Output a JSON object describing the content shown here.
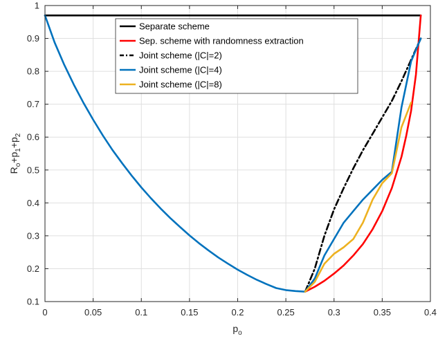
{
  "chart_data": {
    "type": "line",
    "xlabel_main": "p",
    "xlabel_sub": "o",
    "ylabel_parts": [
      {
        "text": "R",
        "sub": false
      },
      {
        "text": "o",
        "sub": true
      },
      {
        "text": "+p",
        "sub": false
      },
      {
        "text": "1",
        "sub": true
      },
      {
        "text": "+p",
        "sub": false
      },
      {
        "text": "2",
        "sub": true
      }
    ],
    "xlim": [
      0,
      0.4
    ],
    "ylim": [
      0.1,
      1
    ],
    "xticks": [
      0,
      0.05,
      0.1,
      0.15,
      0.2,
      0.25,
      0.3,
      0.35,
      0.4
    ],
    "xtick_labels": [
      "0",
      "0.05",
      "0.1",
      "0.15",
      "0.2",
      "0.25",
      "0.3",
      "0.35",
      "0.4"
    ],
    "yticks": [
      0.1,
      0.2,
      0.3,
      0.4,
      0.5,
      0.6,
      0.7,
      0.8,
      0.9,
      1
    ],
    "ytick_labels": [
      "0.1",
      "0.2",
      "0.3",
      "0.4",
      "0.5",
      "0.6",
      "0.7",
      "0.8",
      "0.9",
      "1"
    ],
    "grid": true,
    "legend_position": "top-center",
    "series": [
      {
        "name": "Separate scheme",
        "color": "#000000",
        "dash": "solid",
        "x": [
          0,
          0.39
        ],
        "y": [
          0.97,
          0.97
        ]
      },
      {
        "name": "Sep. scheme with randomness extraction",
        "color": "#ff0000",
        "dash": "solid",
        "x": [
          0.27,
          0.28,
          0.29,
          0.3,
          0.31,
          0.32,
          0.33,
          0.34,
          0.35,
          0.36,
          0.37,
          0.375,
          0.38,
          0.385,
          0.39
        ],
        "y": [
          0.13,
          0.145,
          0.163,
          0.185,
          0.21,
          0.24,
          0.275,
          0.32,
          0.375,
          0.445,
          0.54,
          0.605,
          0.68,
          0.79,
          0.97
        ]
      },
      {
        "name": "Joint scheme (|C|=2)",
        "color": "#000000",
        "dash": "dashdot",
        "x": [
          0.27,
          0.28,
          0.29,
          0.3,
          0.31,
          0.32,
          0.33,
          0.34,
          0.35,
          0.36,
          0.37,
          0.38,
          0.39
        ],
        "y": [
          0.13,
          0.2,
          0.3,
          0.38,
          0.445,
          0.505,
          0.56,
          0.61,
          0.66,
          0.71,
          0.77,
          0.835,
          0.9
        ]
      },
      {
        "name": "Joint scheme (|C|=4)",
        "color": "#0072bd",
        "dash": "solid",
        "x": [
          0,
          0.01,
          0.02,
          0.03,
          0.04,
          0.05,
          0.06,
          0.07,
          0.08,
          0.09,
          0.1,
          0.11,
          0.12,
          0.13,
          0.14,
          0.15,
          0.16,
          0.17,
          0.18,
          0.19,
          0.2,
          0.21,
          0.22,
          0.23,
          0.24,
          0.25,
          0.26,
          0.27,
          0.28,
          0.29,
          0.3,
          0.31,
          0.32,
          0.33,
          0.34,
          0.35,
          0.36,
          0.37,
          0.38,
          0.39
        ],
        "y": [
          0.97,
          0.888,
          0.82,
          0.759,
          0.704,
          0.653,
          0.605,
          0.561,
          0.521,
          0.483,
          0.447,
          0.414,
          0.383,
          0.354,
          0.327,
          0.301,
          0.277,
          0.255,
          0.234,
          0.215,
          0.197,
          0.181,
          0.166,
          0.153,
          0.141,
          0.135,
          0.132,
          0.13,
          0.17,
          0.24,
          0.29,
          0.34,
          0.375,
          0.41,
          0.44,
          0.47,
          0.495,
          0.69,
          0.83,
          0.9
        ]
      },
      {
        "name": "Joint scheme (|C|=8)",
        "color": "#edb120",
        "dash": "solid",
        "x": [
          0.27,
          0.28,
          0.29,
          0.3,
          0.31,
          0.32,
          0.33,
          0.34,
          0.35,
          0.36,
          0.37,
          0.38
        ],
        "y": [
          0.13,
          0.16,
          0.215,
          0.245,
          0.265,
          0.29,
          0.34,
          0.41,
          0.46,
          0.49,
          0.63,
          0.705
        ]
      }
    ]
  }
}
